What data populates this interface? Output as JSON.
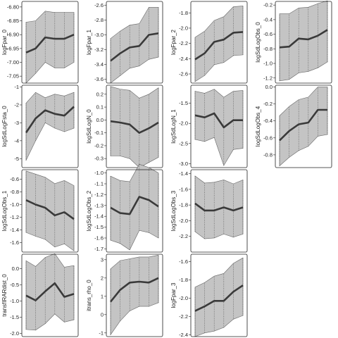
{
  "chart_data": [
    {
      "type": "line",
      "ylabel": "logFpar_0",
      "x": [
        1,
        2,
        3,
        4,
        5,
        6
      ],
      "ylim": [
        -7.075,
        -6.78
      ],
      "yticks": [
        -7.05,
        -7.0,
        -6.95,
        -6.9,
        -6.85,
        -6.8
      ],
      "ytick_labels": [
        "-7.05",
        "-7.00",
        "-6.95",
        "-6.90",
        "-6.85",
        "-6.80"
      ],
      "mean": [
        -6.965,
        -6.95,
        -6.91,
        -6.915,
        -6.915,
        -6.9
      ],
      "lower": [
        -7.075,
        -7.04,
        -7.0,
        -7.02,
        -7.02,
        -7.0
      ],
      "upper": [
        -6.855,
        -6.85,
        -6.815,
        -6.82,
        -6.82,
        -6.82
      ]
    },
    {
      "type": "line",
      "ylabel": "logSdLogFsta_0",
      "x": [
        1,
        2,
        3,
        4,
        5,
        6
      ],
      "ylim": [
        -5.5,
        -0.9
      ],
      "yticks": [
        -5,
        -4,
        -3,
        -2,
        -1
      ],
      "ytick_labels": [
        "-5",
        "-4",
        "-3",
        "-2",
        "-1"
      ],
      "mean": [
        -3.55,
        -2.75,
        -2.3,
        -2.5,
        -2.6,
        -2.1
      ],
      "lower": [
        -5.1,
        -4.0,
        -3.0,
        -3.3,
        -3.5,
        -3.3
      ],
      "upper": [
        -1.9,
        -1.3,
        -1.6,
        -1.4,
        -1.5,
        -1.3
      ]
    },
    {
      "type": "line",
      "ylabel": "logSdLogObs_1",
      "x": [
        1,
        2,
        3,
        4,
        5,
        6
      ],
      "ylim": [
        -1.75,
        -0.45
      ],
      "yticks": [
        -1.6,
        -1.4,
        -1.2,
        -1.0,
        -0.8,
        -0.6
      ],
      "ytick_labels": [
        "-1.6",
        "-1.4",
        "-1.2",
        "-1.0",
        "-0.8",
        "-0.6"
      ],
      "mean": [
        -0.93,
        -1.0,
        -1.05,
        -1.17,
        -1.12,
        -1.23
      ],
      "lower": [
        -1.44,
        -1.5,
        -1.55,
        -1.67,
        -1.62,
        -1.73
      ],
      "upper": [
        -0.47,
        -0.52,
        -0.57,
        -0.67,
        -0.62,
        -0.7
      ]
    },
    {
      "type": "line",
      "ylabel": "transfIRARdist_0",
      "x": [
        1,
        2,
        3,
        4,
        5,
        6
      ],
      "ylim": [
        -2.1,
        0.45
      ],
      "yticks": [
        -2.0,
        -1.5,
        -1.0,
        -0.5,
        0.0
      ],
      "ytick_labels": [
        "-2.0",
        "-1.5",
        "-1.0",
        "-0.5",
        "0.0"
      ],
      "mean": [
        -0.83,
        -0.98,
        -0.7,
        -0.45,
        -0.87,
        -0.78
      ],
      "lower": [
        -1.88,
        -1.9,
        -1.7,
        -1.4,
        -1.65,
        -1.58
      ],
      "upper": [
        0.25,
        0.07,
        0.35,
        0.47,
        0.05,
        0.1
      ]
    },
    {
      "type": "line",
      "ylabel": "logFpar_1",
      "x": [
        1,
        2,
        3,
        4,
        5,
        6
      ],
      "ylim": [
        -3.65,
        -2.55
      ],
      "yticks": [
        -3.6,
        -3.4,
        -3.2,
        -3.0,
        -2.8,
        -2.6
      ],
      "ytick_labels": [
        "-3.6",
        "-3.4",
        "-3.2",
        "-3.0",
        "-2.8",
        "-2.6"
      ],
      "mean": [
        -3.35,
        -3.25,
        -3.17,
        -3.15,
        -3.0,
        -2.98
      ],
      "lower": [
        -3.65,
        -3.55,
        -3.45,
        -3.42,
        -3.33,
        -3.3
      ],
      "upper": [
        -3.05,
        -2.95,
        -2.87,
        -2.85,
        -2.63,
        -2.63
      ]
    },
    {
      "type": "line",
      "ylabel": "logSdLogN_0",
      "x": [
        1,
        2,
        3,
        4,
        5,
        6
      ],
      "ylim": [
        -0.37,
        0.27
      ],
      "yticks": [
        -0.3,
        -0.2,
        -0.1,
        0.0,
        0.1,
        0.2
      ],
      "ytick_labels": [
        "-0.3",
        "-0.2",
        "-0.1",
        "0.0",
        "0.1",
        "0.2"
      ],
      "mean": [
        -0.01,
        -0.02,
        -0.035,
        -0.1,
        -0.065,
        -0.02
      ],
      "lower": [
        -0.28,
        -0.28,
        -0.3,
        -0.37,
        -0.33,
        -0.29
      ],
      "upper": [
        0.26,
        0.24,
        0.23,
        0.17,
        0.2,
        0.25
      ]
    },
    {
      "type": "line",
      "ylabel": "logSdLogObs_2",
      "x": [
        1,
        2,
        3,
        4,
        5,
        6
      ],
      "ylim": [
        -1.73,
        -0.97
      ],
      "yticks": [
        -1.7,
        -1.6,
        -1.5,
        -1.4,
        -1.3,
        -1.2,
        -1.1,
        -1.0
      ],
      "ytick_labels": [
        "-1.7",
        "-1.6",
        "-1.5",
        "-1.4",
        "-1.3",
        "-1.2",
        "-1.1",
        "-1.0"
      ],
      "mean": [
        -1.32,
        -1.37,
        -1.38,
        -1.22,
        -1.25,
        -1.31
      ],
      "lower": [
        -1.62,
        -1.65,
        -1.71,
        -1.53,
        -1.55,
        -1.6
      ],
      "upper": [
        -1.03,
        -1.07,
        -1.08,
        -0.92,
        -0.95,
        -1.0
      ]
    },
    {
      "type": "line",
      "ylabel": "itrans_rho_0",
      "x": [
        1,
        2,
        3,
        4,
        5,
        6
      ],
      "ylim": [
        -1.2,
        3.3
      ],
      "yticks": [
        -1,
        0,
        1,
        2,
        3
      ],
      "ytick_labels": [
        "-1",
        "0",
        "1",
        "2",
        "3"
      ],
      "mean": [
        0.7,
        1.35,
        1.75,
        1.8,
        1.75,
        2.0
      ],
      "lower": [
        -1.1,
        -0.35,
        0.2,
        0.45,
        0.45,
        0.65
      ],
      "upper": [
        2.5,
        2.95,
        3.05,
        3.15,
        3.15,
        3.25
      ]
    },
    {
      "type": "line",
      "ylabel": "logFpar_2",
      "x": [
        1,
        2,
        3,
        4,
        5,
        6
      ],
      "ylim": [
        -2.72,
        -1.65
      ],
      "yticks": [
        -2.6,
        -2.4,
        -2.2,
        -2.0,
        -1.8
      ],
      "ytick_labels": [
        "-2.6",
        "-2.4",
        "-2.2",
        "-2.0",
        "-1.8"
      ],
      "mean": [
        -2.41,
        -2.33,
        -2.18,
        -2.15,
        -2.06,
        -2.05
      ],
      "lower": [
        -2.7,
        -2.62,
        -2.48,
        -2.45,
        -2.36,
        -2.35
      ],
      "upper": [
        -2.12,
        -2.04,
        -1.9,
        -1.85,
        -1.72,
        -1.71
      ]
    },
    {
      "type": "line",
      "ylabel": "logSdLogN_1",
      "x": [
        1,
        2,
        3,
        4,
        5,
        6
      ],
      "ylim": [
        -3.1,
        -1.05
      ],
      "yticks": [
        -3.0,
        -2.5,
        -2.0,
        -1.5
      ],
      "ytick_labels": [
        "-3.0",
        "-2.5",
        "-2.0",
        "-1.5"
      ],
      "mean": [
        -1.8,
        -1.85,
        -1.75,
        -2.1,
        -1.92,
        -1.92
      ],
      "lower": [
        -2.4,
        -2.45,
        -2.35,
        -3.05,
        -2.65,
        -2.62
      ],
      "upper": [
        -1.2,
        -1.25,
        -1.15,
        -1.35,
        -1.2,
        -1.18
      ]
    },
    {
      "type": "line",
      "ylabel": "logSdLogObs_3",
      "x": [
        1,
        2,
        3,
        4,
        5,
        6
      ],
      "ylim": [
        -2.4,
        -1.35
      ],
      "yticks": [
        -2.2,
        -2.0,
        -1.8,
        -1.6,
        -1.4
      ],
      "ytick_labels": [
        "-2.2",
        "-2.0",
        "-1.8",
        "-1.6",
        "-1.4"
      ],
      "mean": [
        -1.78,
        -1.87,
        -1.87,
        -1.83,
        -1.87,
        -1.83
      ],
      "lower": [
        -2.14,
        -2.23,
        -2.22,
        -2.17,
        -2.21,
        -2.17
      ],
      "upper": [
        -1.43,
        -1.52,
        -1.51,
        -1.48,
        -1.53,
        -1.48
      ]
    },
    {
      "type": "line",
      "ylabel": "logFpar_3",
      "x": [
        1,
        2,
        3,
        4,
        5,
        6
      ],
      "ylim": [
        -2.42,
        -1.52
      ],
      "yticks": [
        -2.4,
        -2.2,
        -2.0,
        -1.8,
        -1.6
      ],
      "ytick_labels": [
        "-2.4",
        "-2.2",
        "-2.0",
        "-1.8",
        "-1.6"
      ],
      "mean": [
        -2.14,
        -2.09,
        -2.03,
        -2.03,
        -1.93,
        -1.86
      ],
      "lower": [
        -2.42,
        -2.38,
        -2.36,
        -2.32,
        -2.23,
        -2.19
      ],
      "upper": [
        -1.88,
        -1.83,
        -1.76,
        -1.73,
        -1.62,
        -1.56
      ]
    },
    {
      "type": "line",
      "ylabel": "logSdLogObs_0",
      "x": [
        1,
        2,
        3,
        4,
        5,
        6
      ],
      "ylim": [
        -1.27,
        -0.15
      ],
      "yticks": [
        -1.2,
        -1.0,
        -0.8,
        -0.6,
        -0.4,
        -0.2
      ],
      "ytick_labels": [
        "-1.2",
        "-1.0",
        "-0.8",
        "-0.6",
        "-0.4",
        "-0.2"
      ],
      "mean": [
        -0.78,
        -0.77,
        -0.66,
        -0.67,
        -0.62,
        -0.54
      ],
      "lower": [
        -1.24,
        -1.22,
        -1.13,
        -1.11,
        -1.06,
        -0.98
      ],
      "upper": [
        -0.32,
        -0.32,
        -0.24,
        -0.23,
        -0.18,
        -0.14
      ]
    },
    {
      "type": "line",
      "ylabel": "logSdLogObs_4",
      "x": [
        1,
        2,
        3,
        4,
        5,
        6
      ],
      "ylim": [
        -0.95,
        0.02
      ],
      "yticks": [
        -0.8,
        -0.6,
        -0.4,
        -0.2,
        0.0
      ],
      "ytick_labels": [
        "-0.8",
        "-0.6",
        "-0.4",
        "-0.2",
        "0.0"
      ],
      "mean": [
        -0.63,
        -0.52,
        -0.44,
        -0.42,
        -0.27,
        -0.27
      ],
      "lower": [
        -0.93,
        -0.83,
        -0.75,
        -0.7,
        -0.58,
        -0.56
      ],
      "upper": [
        -0.34,
        -0.23,
        -0.15,
        -0.12,
        0.0,
        0.0
      ]
    }
  ]
}
